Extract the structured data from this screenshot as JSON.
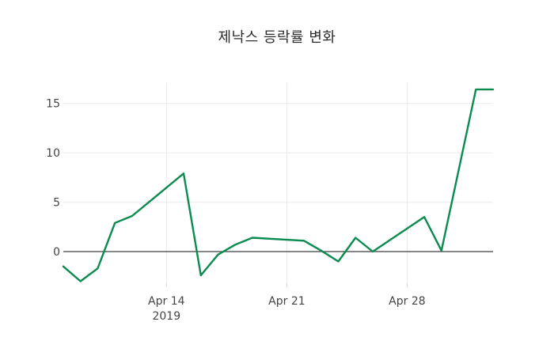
{
  "chart_data": {
    "type": "line",
    "title": "제낙스 등락률 변화",
    "series_name": "등락률",
    "x": [
      "2019-04-08",
      "2019-04-09",
      "2019-04-10",
      "2019-04-11",
      "2019-04-12",
      "2019-04-15",
      "2019-04-16",
      "2019-04-17",
      "2019-04-18",
      "2019-04-19",
      "2019-04-22",
      "2019-04-23",
      "2019-04-24",
      "2019-04-25",
      "2019-04-26",
      "2019-04-29",
      "2019-04-30",
      "2019-05-02",
      "2019-05-03"
    ],
    "values": [
      -1.5,
      -3.0,
      -1.7,
      2.9,
      3.6,
      7.9,
      -2.4,
      -0.3,
      0.7,
      1.4,
      1.1,
      0.1,
      -1.0,
      1.4,
      0.0,
      3.5,
      0.1,
      16.4,
      16.4
    ],
    "xaxis": {
      "range": [
        "2019-04-08",
        "2019-05-03"
      ],
      "ticks": [
        {
          "date": "2019-04-14",
          "label": "Apr 14",
          "sublabel": "2019"
        },
        {
          "date": "2019-04-21",
          "label": "Apr 21",
          "sublabel": ""
        },
        {
          "date": "2019-04-28",
          "label": "Apr 28",
          "sublabel": ""
        }
      ]
    },
    "yaxis": {
      "range": [
        -3.2,
        17.05
      ],
      "ticks": [
        0,
        5,
        10,
        15
      ],
      "zeroline": true
    },
    "grid": "on",
    "legend": "none",
    "colors": {
      "line": "#0c8b50",
      "grid": "#ebebeb",
      "zeroline": "#3f3f3f",
      "tick_mark": "#d9d9d9",
      "tick_text": "#444444",
      "title_text": "#2d2d2d"
    }
  }
}
